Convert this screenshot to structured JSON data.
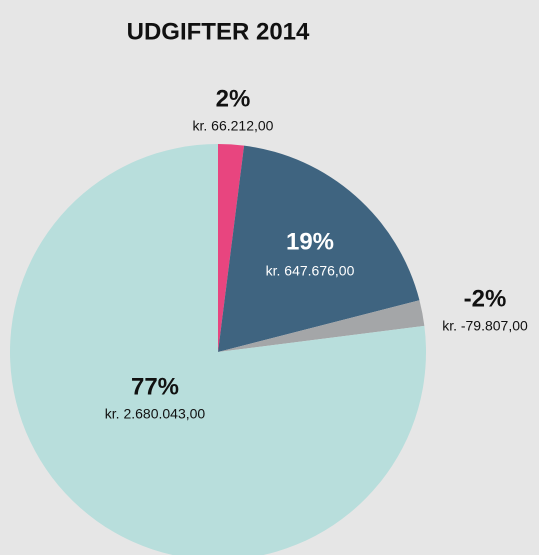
{
  "chart_data": {
    "type": "pie",
    "title": "UDGIFTER 2014",
    "values": [
      2,
      19,
      -2,
      77
    ],
    "value_labels": [
      "2%",
      "19%",
      "-2%",
      "77%"
    ],
    "amount_labels": [
      "kr. 66.212,00",
      "kr. 647.676,00",
      "kr. -79.807,00",
      "kr. 2.680.043,00"
    ],
    "colors": [
      "#e8457f",
      "#3f6480",
      "#a4a6a8",
      "#b8dedc"
    ]
  }
}
